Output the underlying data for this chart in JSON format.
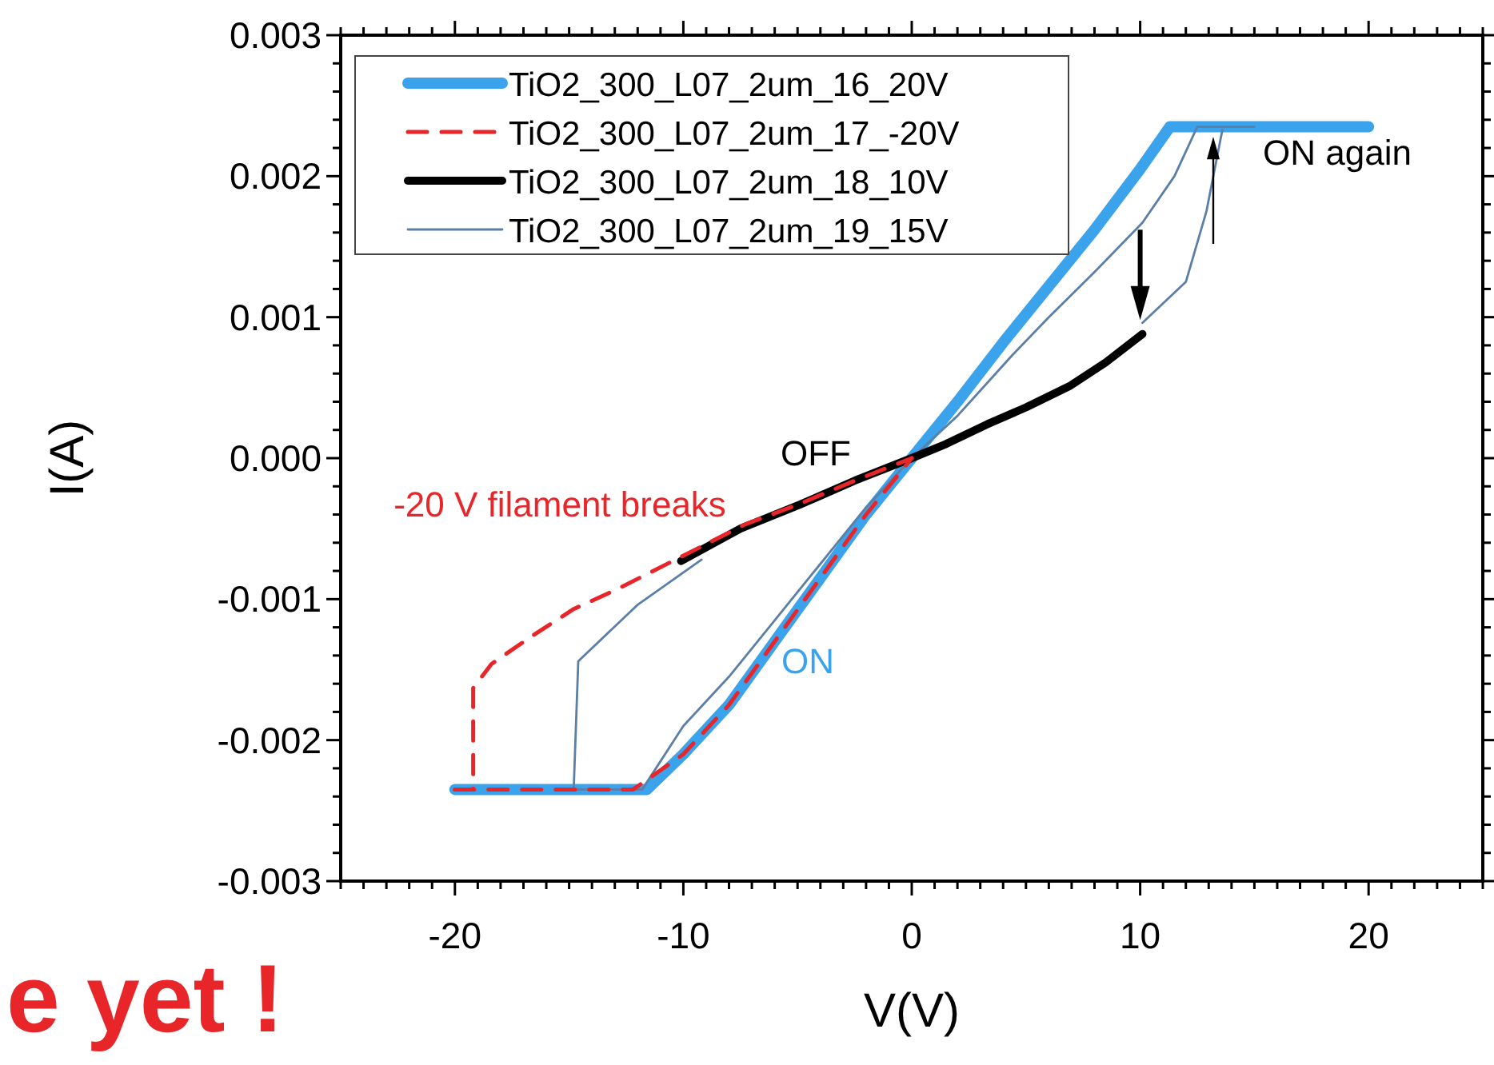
{
  "chart_data": {
    "type": "line",
    "xlabel": "V(V)",
    "ylabel": "I(A)",
    "legend": "top left",
    "grid": false,
    "xlim": [
      -25,
      25
    ],
    "ylim": [
      -0.003,
      0.003
    ],
    "xticks": [
      {
        "value": -25,
        "label": null
      },
      {
        "value": -24,
        "label": null
      },
      {
        "value": -23,
        "label": null
      },
      {
        "value": -22,
        "label": null
      },
      {
        "value": -21,
        "label": null
      },
      -20,
      {
        "value": -19,
        "label": null
      },
      {
        "value": -18,
        "label": null
      },
      {
        "value": -17,
        "label": null
      },
      {
        "value": -16,
        "label": null
      },
      {
        "value": -15,
        "label": null
      },
      {
        "value": -14,
        "label": null
      },
      {
        "value": -13,
        "label": null
      },
      {
        "value": -12,
        "label": null
      },
      {
        "value": -11,
        "label": null
      },
      -10,
      {
        "value": -9,
        "label": null
      },
      {
        "value": -8,
        "label": null
      },
      {
        "value": -7,
        "label": null
      },
      {
        "value": -6,
        "label": null
      },
      {
        "value": -5,
        "label": null
      },
      {
        "value": -4,
        "label": null
      },
      {
        "value": -3,
        "label": null
      },
      {
        "value": -2,
        "label": null
      },
      {
        "value": -1,
        "label": null
      },
      0,
      {
        "value": 1,
        "label": null
      },
      {
        "value": 2,
        "label": null
      },
      {
        "value": 3,
        "label": null
      },
      {
        "value": 4,
        "label": null
      },
      {
        "value": 5,
        "label": null
      },
      {
        "value": 6,
        "label": null
      },
      {
        "value": 7,
        "label": null
      },
      {
        "value": 8,
        "label": null
      },
      {
        "value": 9,
        "label": null
      },
      10,
      {
        "value": 11,
        "label": null
      },
      {
        "value": 12,
        "label": null
      },
      {
        "value": 13,
        "label": null
      },
      {
        "value": 14,
        "label": null
      },
      {
        "value": 15,
        "label": null
      },
      {
        "value": 16,
        "label": null
      },
      {
        "value": 17,
        "label": null
      },
      {
        "value": 18,
        "label": null
      },
      {
        "value": 19,
        "label": null
      },
      20,
      {
        "value": 21,
        "label": null
      },
      {
        "value": 22,
        "label": null
      },
      {
        "value": 23,
        "label": null
      },
      {
        "value": 24,
        "label": null
      },
      {
        "value": 25,
        "label": null
      }
    ],
    "yticks": [
      -0.003,
      {
        "value": -0.0028,
        "label": null
      },
      {
        "value": -0.0026,
        "label": null
      },
      {
        "value": -0.0024,
        "label": null
      },
      {
        "value": -0.0022,
        "label": null
      },
      -0.002,
      {
        "value": -0.0018,
        "label": null
      },
      {
        "value": -0.0016,
        "label": null
      },
      {
        "value": -0.0014,
        "label": null
      },
      {
        "value": -0.0012,
        "label": null
      },
      -0.001,
      {
        "value": -0.0008,
        "label": null
      },
      {
        "value": -0.0006,
        "label": null
      },
      {
        "value": -0.0004,
        "label": null
      },
      {
        "value": -0.0002,
        "label": null
      },
      {
        "value": 0,
        "label": "0.000"
      },
      {
        "value": 0.0002,
        "label": null
      },
      {
        "value": 0.0004,
        "label": null
      },
      {
        "value": 0.0006,
        "label": null
      },
      {
        "value": 0.0008,
        "label": null
      },
      0.001,
      {
        "value": 0.0012,
        "label": null
      },
      {
        "value": 0.0014,
        "label": null
      },
      {
        "value": 0.0016,
        "label": null
      },
      {
        "value": 0.0018,
        "label": null
      },
      0.002,
      {
        "value": 0.0022,
        "label": null
      },
      {
        "value": 0.0024,
        "label": null
      },
      {
        "value": 0.0026,
        "label": null
      },
      {
        "value": 0.0028,
        "label": null
      },
      0.003
    ],
    "series": [
      {
        "name": "TiO2_300_L07_2um_16_20V",
        "color": "#3ba3ec",
        "line_style": "solid",
        "x": [
          -20,
          -11.6,
          -10,
          -8,
          -6,
          -4,
          -2,
          0,
          2,
          4,
          6,
          8,
          10,
          11.3,
          12,
          20
        ],
        "values": [
          -0.00235,
          -0.00235,
          -0.0021,
          -0.00175,
          -0.0013,
          -0.00085,
          -0.0004,
          0,
          0.0004,
          0.00082,
          0.00122,
          0.00162,
          0.00205,
          0.00235,
          0.00235,
          0.00235
        ]
      },
      {
        "name": "TiO2_300_L07_2um_17_-20V",
        "color": "#e8262a",
        "line_style": "dashed",
        "x": [
          -20,
          -19.2,
          -19.2,
          -18.4,
          -16.7,
          -14.8,
          -12.9,
          -10.1,
          -7.3,
          -5,
          -2.5,
          0
        ],
        "values": [
          -0.00235,
          -0.00235,
          -0.00163,
          -0.00146,
          -0.00127,
          -0.00107,
          -0.00093,
          -0.0007,
          -0.00047,
          -0.00033,
          -0.00016,
          0
        ]
      },
      {
        "name": "TiO2_300_L07_2um_18_10V",
        "color": "#000000",
        "line_style": "solid",
        "x": [
          -10.1,
          -7.5,
          -4.9,
          -2.5,
          0,
          1.5,
          3.3,
          5,
          6.9,
          8.5,
          10.1
        ],
        "values": [
          -0.00073,
          -0.0005,
          -0.00033,
          -0.00016,
          0,
          0.0001,
          0.00024,
          0.00036,
          0.00051,
          0.00068,
          0.00088
        ]
      },
      {
        "name": "TiO2_300_L07_2um_19_15V",
        "color": "#5b7fa6",
        "line_style": "solid",
        "x": [
          -15,
          -11.8,
          -10,
          -8,
          -6,
          -4,
          -2,
          0,
          2,
          4.4,
          6,
          8,
          10.1,
          11.5,
          12.5,
          15
        ],
        "values": [
          -0.00235,
          -0.00235,
          -0.0019,
          -0.00155,
          -0.00115,
          -0.00075,
          -0.00035,
          0,
          0.0003,
          0.00073,
          0.001,
          0.00132,
          0.00167,
          0.002,
          0.00235,
          0.00235
        ]
      },
      {
        "color": "#e8262a",
        "line_style": "dashed",
        "x": [
          -20,
          -12.2,
          -10,
          -8,
          -6,
          -4,
          -2,
          0
        ],
        "values": [
          -0.00235,
          -0.00235,
          -0.0021,
          -0.00175,
          -0.0013,
          -0.00085,
          -0.0004,
          0
        ]
      },
      {
        "color": "#5b7fa6",
        "line_style": "solid",
        "x": [
          10.1,
          12,
          12.9,
          13.6
        ],
        "values": [
          0.00096,
          0.00125,
          0.00175,
          0.00233
        ]
      },
      {
        "color": "#5b7fa6",
        "line_style": "solid",
        "x": [
          -14.8,
          -14.6,
          -12,
          -9.2
        ],
        "values": [
          -0.00235,
          -0.00144,
          -0.00104,
          -0.00072
        ]
      }
    ],
    "annotations": [
      "-20 V filament breaks",
      "OFF",
      "ON",
      "ON again",
      "e yet !"
    ]
  }
}
